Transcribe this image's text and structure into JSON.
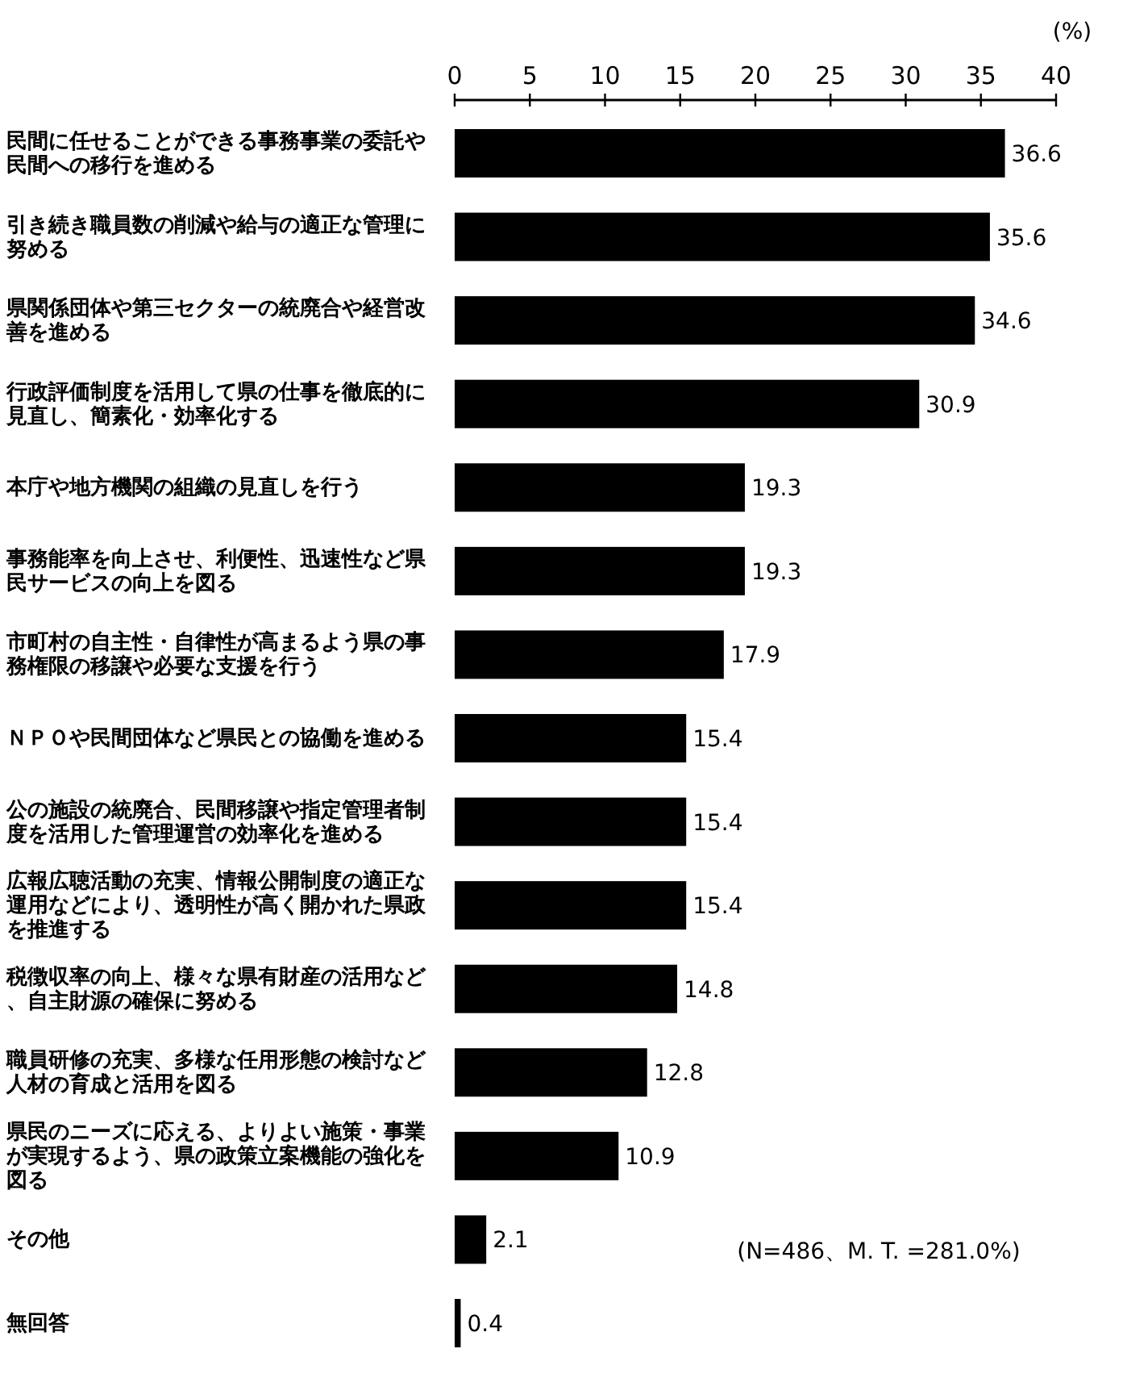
{
  "chart_data": {
    "type": "bar",
    "orientation": "horizontal",
    "categories": [
      "民間に任せることができる事務事業の委託や民間への移行を進める",
      "引き続き職員数の削減や給与の適正な管理に努める",
      "県関係団体や第三セクターの統廃合や経営改善を進める",
      "行政評価制度を活用して県の仕事を徹底的に見直し、簡素化・効率化する",
      "本庁や地方機関の組織の見直しを行う",
      "事務能率を向上させ、利便性、迅速性など県民サービスの向上を図る",
      "市町村の自主性・自律性が高まるよう県の事務権限の移譲や必要な支援を行う",
      "ＮＰＯや民間団体など県民との協働を進める",
      "公の施設の統廃合、民間移譲や指定管理者制度を活用した管理運営の効率化を進める",
      "広報広聴活動の充実、情報公開制度の適正な運用などにより、透明性が高く開かれた県政を推進する",
      "税徴収率の向上、様々な県有財産の活用など、自主財源の確保に努める",
      "職員研修の充実、多様な任用形態の検討など人材の育成と活用を図る",
      "県民のニーズに応える、よりよい施策・事業が実現するよう、県の政策立案機能の強化を図る",
      "その他",
      "無回答"
    ],
    "values": [
      36.6,
      35.6,
      34.6,
      30.9,
      19.3,
      19.3,
      17.9,
      15.4,
      15.4,
      15.4,
      14.8,
      12.8,
      10.9,
      2.1,
      0.4
    ],
    "color": "#000000",
    "data_labels": true,
    "xlim": [
      0,
      40
    ],
    "xticks": [
      0,
      5,
      10,
      15,
      20,
      25,
      30,
      35,
      40
    ],
    "xlabel": "(%)",
    "annotations": [
      "(N=486、M. T. =281.0%)"
    ]
  }
}
